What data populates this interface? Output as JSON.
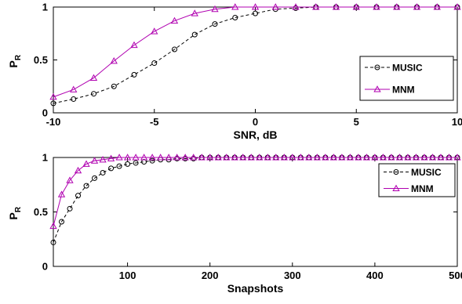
{
  "chart_data": [
    {
      "type": "line",
      "xlabel": "SNR, dB",
      "ylabel": "P",
      "ylabel_sub": "R",
      "xlim": [
        -10,
        10
      ],
      "ylim": [
        0,
        1
      ],
      "xticks": [
        -10,
        -5,
        0,
        5,
        10
      ],
      "yticks": [
        0,
        0.5,
        1
      ],
      "xtick_labels": [
        "-10",
        "-5",
        "0",
        "5",
        "10"
      ],
      "ytick_labels": [
        "0",
        "0.5",
        "1"
      ],
      "grid": false,
      "legend_position": "center-right",
      "series": [
        {
          "name": "MUSIC",
          "color": "#000000",
          "marker": "circle",
          "dash": true,
          "x": [
            -10,
            -9,
            -8,
            -7,
            -6,
            -5,
            -4,
            -3,
            -2,
            -1,
            0,
            1,
            2,
            3,
            4,
            5,
            6,
            7,
            8,
            9,
            10
          ],
          "y": [
            0.09,
            0.13,
            0.18,
            0.25,
            0.36,
            0.47,
            0.6,
            0.74,
            0.84,
            0.9,
            0.94,
            0.98,
            0.99,
            1,
            1,
            1,
            1,
            1,
            1,
            1,
            1
          ]
        },
        {
          "name": "MNM",
          "color": "#b000b0",
          "marker": "triangle",
          "dash": false,
          "x": [
            -10,
            -9,
            -8,
            -7,
            -6,
            -5,
            -4,
            -3,
            -2,
            -1,
            0,
            1,
            2,
            3,
            4,
            5,
            6,
            7,
            8,
            9,
            10
          ],
          "y": [
            0.15,
            0.22,
            0.33,
            0.49,
            0.64,
            0.77,
            0.87,
            0.94,
            0.98,
            1,
            1,
            1,
            1,
            1,
            1,
            1,
            1,
            1,
            1,
            1,
            1
          ]
        }
      ]
    },
    {
      "type": "line",
      "xlabel": "Snapshots",
      "ylabel": "P",
      "ylabel_sub": "R",
      "xlim": [
        10,
        500
      ],
      "ylim": [
        0,
        1
      ],
      "xticks": [
        100,
        200,
        300,
        400,
        500
      ],
      "yticks": [
        0,
        0.5,
        1
      ],
      "xtick_labels": [
        "100",
        "200",
        "300",
        "400",
        "500"
      ],
      "ytick_labels": [
        "0",
        "0.5",
        "1"
      ],
      "grid": false,
      "legend_position": "top-right",
      "series": [
        {
          "name": "MUSIC",
          "color": "#000000",
          "marker": "circle",
          "dash": true,
          "x": [
            10,
            20,
            30,
            40,
            50,
            60,
            70,
            80,
            90,
            100,
            110,
            120,
            130,
            140,
            150,
            160,
            170,
            180,
            190,
            200,
            210,
            220,
            230,
            240,
            250,
            260,
            270,
            280,
            290,
            300,
            310,
            320,
            330,
            340,
            350,
            360,
            370,
            380,
            390,
            400,
            410,
            420,
            430,
            440,
            450,
            460,
            470,
            480,
            490,
            500
          ],
          "y": [
            0.22,
            0.41,
            0.53,
            0.65,
            0.74,
            0.81,
            0.86,
            0.9,
            0.92,
            0.94,
            0.95,
            0.96,
            0.97,
            0.98,
            0.98,
            0.99,
            0.99,
            0.99,
            1,
            1,
            1,
            1,
            1,
            1,
            1,
            1,
            1,
            1,
            1,
            1,
            1,
            1,
            1,
            1,
            1,
            1,
            1,
            1,
            1,
            1,
            1,
            1,
            1,
            1,
            1,
            1,
            1,
            1,
            1,
            1
          ]
        },
        {
          "name": "MNM",
          "color": "#b000b0",
          "marker": "triangle",
          "dash": false,
          "x": [
            10,
            20,
            30,
            40,
            50,
            60,
            70,
            80,
            90,
            100,
            110,
            120,
            130,
            140,
            150,
            160,
            170,
            180,
            190,
            200,
            210,
            220,
            230,
            240,
            250,
            260,
            270,
            280,
            290,
            300,
            310,
            320,
            330,
            340,
            350,
            360,
            370,
            380,
            390,
            400,
            410,
            420,
            430,
            440,
            450,
            460,
            470,
            480,
            490,
            500
          ],
          "y": [
            0.37,
            0.66,
            0.79,
            0.88,
            0.94,
            0.97,
            0.98,
            0.99,
            1,
            1,
            1,
            1,
            1,
            1,
            1,
            1,
            1,
            1,
            1,
            1,
            1,
            1,
            1,
            1,
            1,
            1,
            1,
            1,
            1,
            1,
            1,
            1,
            1,
            1,
            1,
            1,
            1,
            1,
            1,
            1,
            1,
            1,
            1,
            1,
            1,
            1,
            1,
            1,
            1,
            1
          ]
        }
      ]
    }
  ]
}
